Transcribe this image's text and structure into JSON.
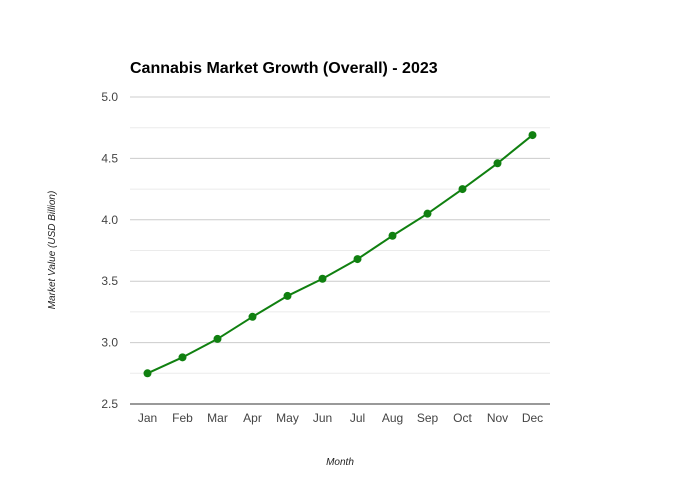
{
  "chart_data": {
    "type": "line",
    "title": "Cannabis Market Growth (Overall) - 2023",
    "xlabel": "Month",
    "ylabel": "Market Value (USD Billion)",
    "categories": [
      "Jan",
      "Feb",
      "Mar",
      "Apr",
      "May",
      "Jun",
      "Jul",
      "Aug",
      "Sep",
      "Oct",
      "Nov",
      "Dec"
    ],
    "series": [
      {
        "values": [
          2.75,
          2.88,
          3.03,
          3.21,
          3.38,
          3.52,
          3.68,
          3.87,
          4.05,
          4.25,
          4.46,
          4.69
        ],
        "color": "#108010"
      }
    ],
    "ylim": [
      2.5,
      5.0
    ],
    "yticks": [
      "2.5",
      "3.0",
      "3.5",
      "4.0",
      "4.5",
      "5.0"
    ],
    "grid": true,
    "legend": "none"
  }
}
